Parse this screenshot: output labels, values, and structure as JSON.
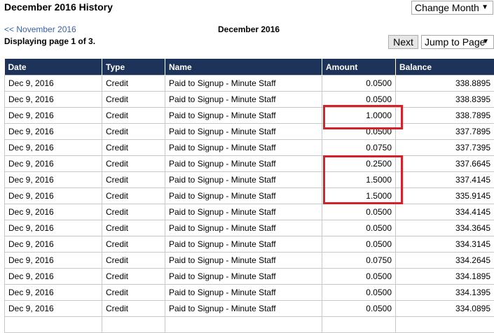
{
  "page": {
    "title": "December 2016 History",
    "change_month": "Change Month",
    "prev_link": "<< November 2016",
    "month_heading": "December 2016",
    "page_info_prefix": "Displaying page ",
    "page_current": "1",
    "page_info_middle": " of ",
    "page_total": "3.",
    "next_label": "Next",
    "jump_label": "Jump to Page"
  },
  "columns": [
    "Date",
    "Type",
    "Name",
    "Amount",
    "Balance"
  ],
  "rows": [
    {
      "date": "Dec 9, 2016",
      "type": "Credit",
      "name": "Paid to Signup - Minute Staff",
      "amount": "0.0500",
      "balance": "338.8895"
    },
    {
      "date": "Dec 9, 2016",
      "type": "Credit",
      "name": "Paid to Signup - Minute Staff",
      "amount": "0.0500",
      "balance": "338.8395"
    },
    {
      "date": "Dec 9, 2016",
      "type": "Credit",
      "name": "Paid to Signup - Minute Staff",
      "amount": "1.0000",
      "balance": "338.7895"
    },
    {
      "date": "Dec 9, 2016",
      "type": "Credit",
      "name": "Paid to Signup - Minute Staff",
      "amount": "0.0500",
      "balance": "337.7895"
    },
    {
      "date": "Dec 9, 2016",
      "type": "Credit",
      "name": "Paid to Signup - Minute Staff",
      "amount": "0.0750",
      "balance": "337.7395"
    },
    {
      "date": "Dec 9, 2016",
      "type": "Credit",
      "name": "Paid to Signup - Minute Staff",
      "amount": "0.2500",
      "balance": "337.6645"
    },
    {
      "date": "Dec 9, 2016",
      "type": "Credit",
      "name": "Paid to Signup - Minute Staff",
      "amount": "1.5000",
      "balance": "337.4145"
    },
    {
      "date": "Dec 9, 2016",
      "type": "Credit",
      "name": "Paid to Signup - Minute Staff",
      "amount": "1.5000",
      "balance": "335.9145"
    },
    {
      "date": "Dec 9, 2016",
      "type": "Credit",
      "name": "Paid to Signup - Minute Staff",
      "amount": "0.0500",
      "balance": "334.4145"
    },
    {
      "date": "Dec 9, 2016",
      "type": "Credit",
      "name": "Paid to Signup - Minute Staff",
      "amount": "0.0500",
      "balance": "334.3645"
    },
    {
      "date": "Dec 9, 2016",
      "type": "Credit",
      "name": "Paid to Signup - Minute Staff",
      "amount": "0.0500",
      "balance": "334.3145"
    },
    {
      "date": "Dec 9, 2016",
      "type": "Credit",
      "name": "Paid to Signup - Minute Staff",
      "amount": "0.0750",
      "balance": "334.2645"
    },
    {
      "date": "Dec 9, 2016",
      "type": "Credit",
      "name": "Paid to Signup - Minute Staff",
      "amount": "0.0500",
      "balance": "334.1895"
    },
    {
      "date": "Dec 9, 2016",
      "type": "Credit",
      "name": "Paid to Signup - Minute Staff",
      "amount": "0.0500",
      "balance": "334.1395"
    },
    {
      "date": "Dec 9, 2016",
      "type": "Credit",
      "name": "Paid to Signup - Minute Staff",
      "amount": "0.0500",
      "balance": "334.0895"
    },
    {
      "date": "",
      "type": "",
      "name": "",
      "amount": "",
      "balance": ""
    }
  ],
  "highlight_color": "#d6202a",
  "header_color": "#1d3359"
}
